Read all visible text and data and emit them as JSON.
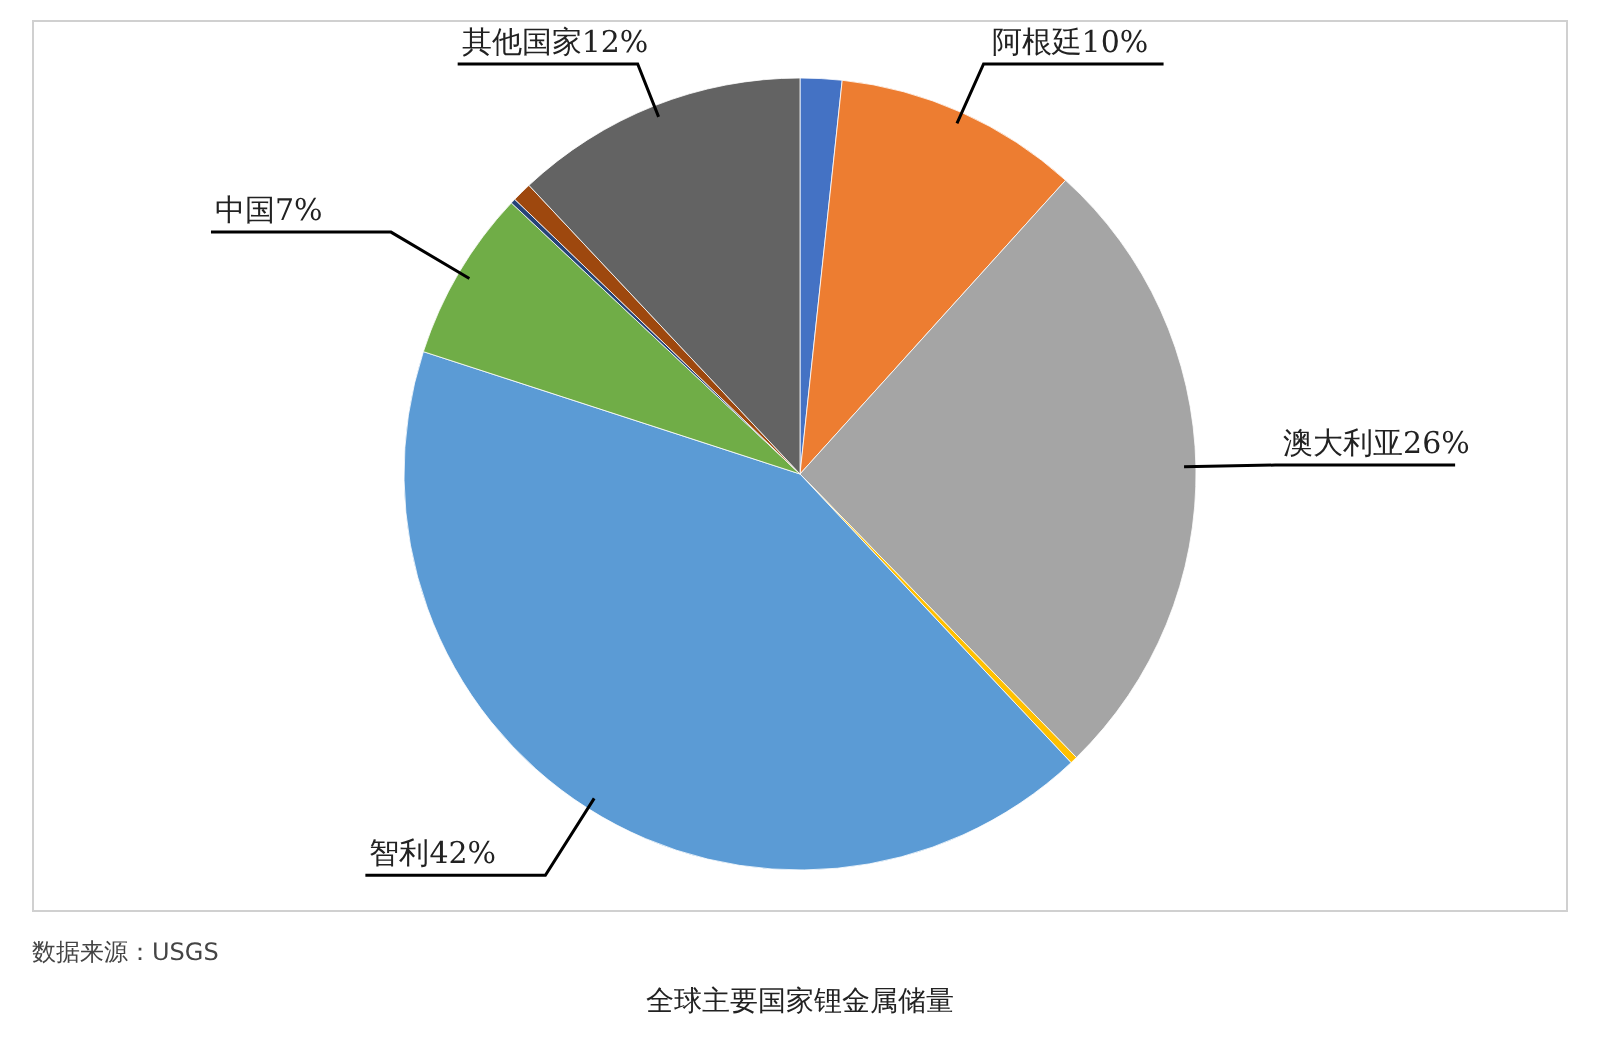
{
  "chart_data": {
    "type": "pie",
    "title": "全球主要国家锂金属储量",
    "categories": [
      null,
      "阿根廷10%",
      "澳大利亚26%",
      null,
      "智利42%",
      "中国7%",
      null,
      null,
      "其他国家12%"
    ],
    "values": [
      1.7,
      10,
      26,
      0.3,
      42,
      7,
      0.2,
      0.8,
      12
    ],
    "colors": [
      "#4472c4",
      "#ed7d31",
      "#a5a5a5",
      "#ffc000",
      "#5b9bd5",
      "#70ad47",
      "#264478",
      "#9e480e",
      "#636363"
    ],
    "annotations": [
      "数据来源：USGS"
    ]
  }
}
